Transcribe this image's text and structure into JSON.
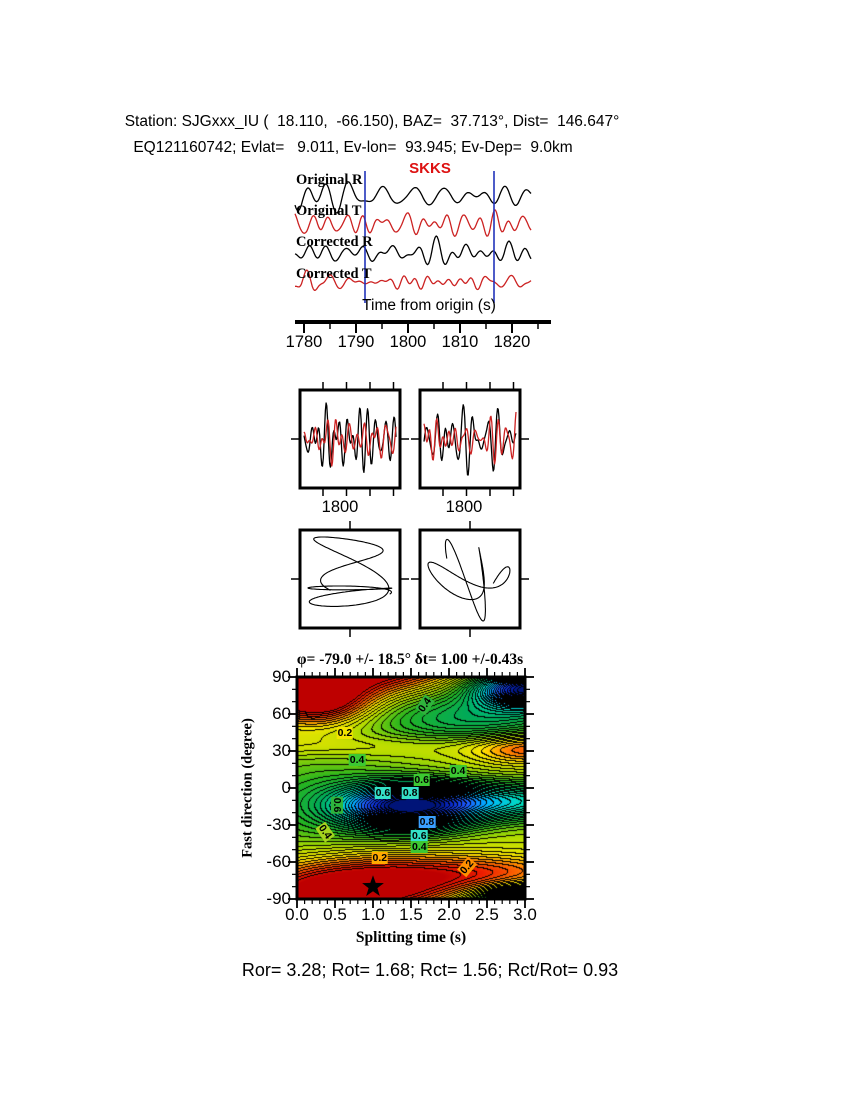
{
  "header": {
    "line1": "Station: SJGxxx_IU (  18.110,  -66.150), BAZ=  37.713°, Dist=  146.647°",
    "line2": "EQ121160742; Evlat=   9.011, Ev-lon=  93.945; Ev-Dep=  9.0km",
    "station": {
      "code": "SJGxxx_IU",
      "lat": "18.110",
      "lon": "-66.150",
      "baz_deg": "37.713",
      "dist_deg": "146.647"
    },
    "event": {
      "id": "EQ121160742",
      "ev_lat": "9.011",
      "ev_lon": "93.945",
      "ev_dep": "9.0km"
    }
  },
  "seismograms": {
    "phase_label": "SKKS",
    "trace_labels": [
      "Original R",
      "Original T",
      "Corrected R",
      "Corrected T"
    ],
    "axis_label": "Time from origin (s)",
    "ticks": [
      "1780",
      "1790",
      "1800",
      "1810",
      "1820"
    ]
  },
  "wave_windows": {
    "labels": [
      "1800",
      "1800"
    ]
  },
  "contour": {
    "title": "φ= -79.0 +/- 18.5° δt= 1.00 +/-0.43s",
    "ylabel": "Fast direction (degree)",
    "xlabel": "Splitting time (s)",
    "yticks": [
      "90",
      "60",
      "30",
      "0",
      "-30",
      "-60",
      "-90"
    ],
    "xticks": [
      "0.0",
      "0.5",
      "1.0",
      "1.5",
      "2.0",
      "2.5",
      "3.0"
    ],
    "labels": [
      {
        "text": "0.2",
        "t": 0.63,
        "phi": 44.6,
        "bg": "#f2e400",
        "rot": 0
      },
      {
        "text": "0.4",
        "t": 0.79,
        "phi": 22.7,
        "bg": "#3cc832",
        "rot": 0
      },
      {
        "text": "0.4",
        "t": 1.68,
        "phi": 67.3,
        "bg": "#2fb43c",
        "rot": -55
      },
      {
        "text": "0.6",
        "t": 1.64,
        "phi": 6.5,
        "bg": "#3cc832",
        "rot": 0
      },
      {
        "text": "0.4",
        "t": 2.12,
        "phi": 13.8,
        "bg": "#3cc832",
        "rot": 0
      },
      {
        "text": "0.6",
        "t": 1.13,
        "phi": -4.0,
        "bg": "#35e0c8",
        "rot": 0
      },
      {
        "text": "0.8",
        "t": 1.49,
        "phi": -4.0,
        "bg": "#35e0c8",
        "rot": 0
      },
      {
        "text": "0.6",
        "t": 0.53,
        "phi": -13.8,
        "bg": "#2fb43c",
        "rot": 90
      },
      {
        "text": "0.4",
        "t": 0.37,
        "phi": -35.7,
        "bg": "#a6d41e",
        "rot": 55
      },
      {
        "text": "0.8",
        "t": 1.71,
        "phi": -27.6,
        "bg": "#3aa0ff",
        "rot": 0
      },
      {
        "text": "0.6",
        "t": 1.61,
        "phi": -38.9,
        "bg": "#35e0c8",
        "rot": 0
      },
      {
        "text": "0.4",
        "t": 1.61,
        "phi": -47.8,
        "bg": "#3cc832",
        "rot": 0
      },
      {
        "text": "0.2",
        "t": 1.09,
        "phi": -56.8,
        "bg": "#ffaa00",
        "rot": 0
      },
      {
        "text": "0.2",
        "t": 2.24,
        "phi": -64.1,
        "bg": "#ff9000",
        "rot": -50
      }
    ]
  },
  "results": {
    "text": "Ror= 3.28; Rot= 1.68; Rct= 1.56; Rct/Rot= 0.93",
    "Ror": "3.28",
    "Rot": "1.68",
    "Rct": "1.56",
    "Rct_over_Rot": "0.93"
  },
  "colors": {
    "trace_red": "#cc2222",
    "window_line_blue": "#2233bb",
    "phase_red": "#dd1111"
  },
  "chart_data": [
    {
      "type": "line",
      "id": "seismogram-traces",
      "title": "SKKS",
      "series": [
        {
          "name": "Original R",
          "color": "#000000"
        },
        {
          "name": "Original T",
          "color": "#cc2222"
        },
        {
          "name": "Corrected R",
          "color": "#000000"
        },
        {
          "name": "Corrected T",
          "color": "#cc2222"
        }
      ],
      "xlabel": "Time from origin (s)",
      "x_ticks": [
        1780,
        1790,
        1800,
        1810,
        1820
      ],
      "x_range": [
        1778,
        1828
      ],
      "selection_window_lines_s": [
        1791.5,
        1816.5
      ]
    },
    {
      "type": "line",
      "id": "windowed-waveform-comparison",
      "panels": [
        {
          "x_tick": 1800
        },
        {
          "x_tick": 1800
        }
      ],
      "series_colors": [
        "#000000",
        "#cc2222"
      ]
    },
    {
      "type": "scatter",
      "id": "particle-motion-hodograms",
      "panels": 2,
      "line_color": "#000000"
    },
    {
      "type": "heatmap",
      "id": "splitting-misfit-contour",
      "title": "φ= -79.0 +/- 18.5° δt= 1.00 +/-0.43s",
      "xlabel": "Splitting time (s)",
      "ylabel": "Fast direction (degree)",
      "x_range": [
        0.0,
        3.0
      ],
      "y_range": [
        -90,
        90
      ],
      "x_ticks": [
        0.0,
        0.5,
        1.0,
        1.5,
        2.0,
        2.5,
        3.0
      ],
      "y_ticks": [
        90,
        60,
        30,
        0,
        -30,
        -60,
        -90
      ],
      "labeled_contour_levels": [
        0.2,
        0.4,
        0.6,
        0.8
      ],
      "grid": false,
      "best_solution": {
        "fast_direction_deg": -79.0,
        "fast_direction_err_deg": 18.5,
        "delay_time_s": 1.0,
        "delay_time_err_s": 0.43,
        "marker": "star",
        "marker_xy": [
          1.0,
          -79
        ]
      },
      "colormap_low_to_high": [
        "#ff0000",
        "#ff8800",
        "#ffee00",
        "#22aa22",
        "#00e0d0",
        "#2266ff",
        "#001a88"
      ],
      "quality_numbers": {
        "Ror": 3.28,
        "Rot": 1.68,
        "Rct": 1.56,
        "Rct/Rot": 0.93
      }
    }
  ]
}
